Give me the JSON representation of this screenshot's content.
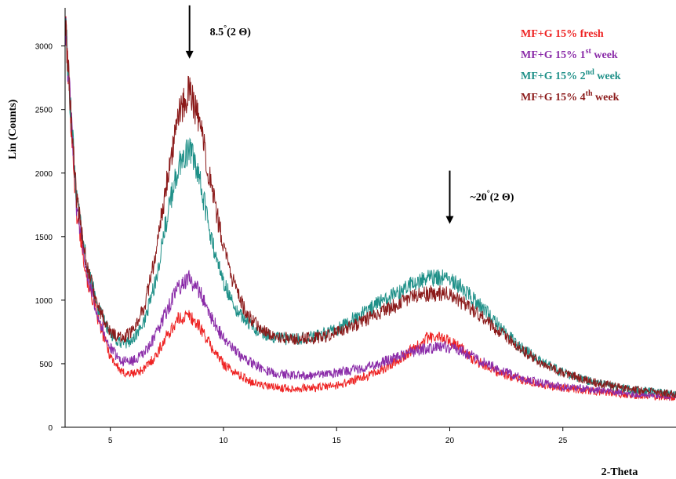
{
  "chart_data": {
    "type": "line",
    "xlabel": "2-Theta",
    "ylabel": "Lin (Counts)",
    "xlim": [
      3,
      30
    ],
    "ylim": [
      0,
      3300
    ],
    "xticks": [
      5,
      10,
      15,
      20,
      25
    ],
    "yticks": [
      0,
      500,
      1000,
      1500,
      2000,
      2500,
      3000
    ],
    "grid": false,
    "legend_position": "top-right",
    "annotations": [
      {
        "text": "8.5",
        "sup": "°",
        "suffix": "(2 Θ)",
        "x": 8.5,
        "y": 2900
      },
      {
        "text": "~20",
        "sup": "°",
        "suffix": "(2 Θ)",
        "x": 20,
        "y": 1600
      }
    ],
    "series": [
      {
        "name": "MF+G 15% fresh",
        "legend_main": "MF+G 15% fresh",
        "legend_sup": "",
        "legend_tail": "",
        "color": "#ee2222",
        "x": [
          3,
          3.5,
          4,
          4.5,
          5,
          5.5,
          6,
          6.5,
          7,
          7.5,
          8,
          8.5,
          9,
          9.5,
          10,
          10.5,
          11,
          11.5,
          12,
          12.5,
          13,
          14,
          15,
          16,
          17,
          18,
          18.5,
          19,
          19.5,
          20,
          20.5,
          21,
          22,
          23,
          24,
          25,
          26,
          27,
          28,
          29,
          30
        ],
        "y": [
          3200,
          1700,
          1150,
          820,
          560,
          430,
          420,
          460,
          560,
          720,
          850,
          880,
          780,
          620,
          500,
          430,
          380,
          340,
          320,
          310,
          305,
          310,
          330,
          380,
          450,
          560,
          640,
          700,
          710,
          680,
          620,
          540,
          440,
          380,
          340,
          310,
          290,
          270,
          255,
          245,
          235
        ]
      },
      {
        "name": "MF+G 15% 1st week",
        "legend_main": "MF+G 15% 1",
        "legend_sup": "st",
        "legend_tail": " week",
        "color": "#8a2ba8",
        "x": [
          3,
          3.5,
          4,
          4.5,
          5,
          5.5,
          6,
          6.5,
          7,
          7.5,
          8,
          8.5,
          9,
          9.5,
          10,
          10.5,
          11,
          11.5,
          12,
          12.5,
          13,
          14,
          15,
          16,
          17,
          18,
          18.5,
          19,
          19.5,
          20,
          20.5,
          21,
          22,
          23,
          24,
          25,
          26,
          27,
          28,
          29,
          30
        ],
        "y": [
          3200,
          1750,
          1200,
          850,
          620,
          520,
          520,
          580,
          720,
          920,
          1100,
          1170,
          1050,
          850,
          700,
          600,
          530,
          480,
          440,
          420,
          410,
          410,
          430,
          460,
          510,
          570,
          600,
          620,
          630,
          630,
          600,
          560,
          470,
          400,
          350,
          320,
          300,
          280,
          265,
          255,
          245
        ]
      },
      {
        "name": "MF+G 15% 2nd week",
        "legend_main": "MF+G 15% 2",
        "legend_sup": "nd",
        "legend_tail": " week",
        "color": "#1f9088",
        "x": [
          3,
          3.5,
          4,
          4.5,
          5,
          5.5,
          6,
          6.5,
          7,
          7.5,
          8,
          8.5,
          9,
          9.5,
          10,
          10.5,
          11,
          11.5,
          12,
          12.5,
          13,
          14,
          15,
          16,
          17,
          18,
          18.5,
          19,
          19.5,
          20,
          20.5,
          21,
          22,
          23,
          24,
          25,
          26,
          27,
          28,
          29,
          30
        ],
        "y": [
          3200,
          1800,
          1250,
          920,
          730,
          650,
          690,
          830,
          1150,
          1650,
          2050,
          2200,
          1900,
          1450,
          1150,
          950,
          830,
          760,
          720,
          700,
          690,
          710,
          770,
          880,
          990,
          1090,
          1140,
          1170,
          1180,
          1160,
          1100,
          1020,
          830,
          650,
          520,
          430,
          370,
          330,
          300,
          280,
          260
        ]
      },
      {
        "name": "MF+G 15% 4th week",
        "legend_main": "MF+G 15% 4",
        "legend_sup": "th",
        "legend_tail": " week",
        "color": "#8b1a1a",
        "x": [
          3,
          3.5,
          4,
          4.5,
          5,
          5.5,
          6,
          6.5,
          7,
          7.5,
          8,
          8.5,
          9,
          9.5,
          10,
          10.5,
          11,
          11.5,
          12,
          12.5,
          13,
          14,
          15,
          16,
          17,
          18,
          18.5,
          19,
          19.5,
          20,
          20.5,
          21,
          22,
          23,
          24,
          25,
          26,
          27,
          28,
          29,
          30
        ],
        "y": [
          3200,
          1800,
          1250,
          930,
          750,
          700,
          760,
          950,
          1350,
          1950,
          2450,
          2650,
          2350,
          1850,
          1420,
          1100,
          900,
          800,
          740,
          710,
          700,
          700,
          740,
          820,
          910,
          990,
          1030,
          1050,
          1060,
          1040,
          990,
          930,
          780,
          630,
          510,
          430,
          370,
          330,
          300,
          280,
          260
        ]
      }
    ]
  }
}
